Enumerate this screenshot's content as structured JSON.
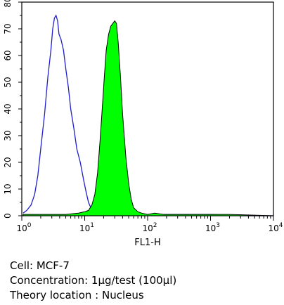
{
  "chart_data": {
    "type": "area",
    "xlabel": "FL1-H",
    "xscale": "log",
    "xlim": [
      1,
      10000
    ],
    "ylim": [
      0,
      80
    ],
    "ytick_labels": [
      "0",
      "10",
      "20",
      "30",
      "40",
      "50",
      "60",
      "70",
      "80"
    ],
    "xtick_labels": [
      {
        "base": "10",
        "exp": "0"
      },
      {
        "base": "10",
        "exp": "1"
      },
      {
        "base": "10",
        "exp": "2"
      },
      {
        "base": "10",
        "exp": "3"
      },
      {
        "base": "10",
        "exp": "4"
      }
    ],
    "series": [
      {
        "style": "outline",
        "color": "#1f1fcc",
        "x": [
          1.05,
          1.2,
          1.4,
          1.6,
          1.8,
          2.0,
          2.3,
          2.6,
          2.9,
          3.1,
          3.3,
          3.5,
          3.7,
          3.9,
          4.2,
          4.6,
          5.0,
          5.5,
          6.0,
          6.7,
          7.5,
          8.5,
          9.5,
          10.5,
          11.5,
          12.5,
          14,
          16,
          20,
          30,
          50,
          100,
          300,
          1000,
          3000,
          10000
        ],
        "y": [
          1,
          2,
          4,
          8,
          15,
          25,
          38,
          52,
          62,
          70,
          74,
          75,
          73,
          68,
          66,
          62,
          55,
          48,
          40,
          33,
          25,
          20,
          14,
          9,
          5,
          3,
          2,
          1,
          1,
          0.5,
          0.5,
          0.5,
          0.5,
          0.5,
          0,
          0
        ]
      },
      {
        "style": "filled",
        "color": "#00ff00",
        "x": [
          1.05,
          2,
          5,
          8,
          10,
          11.5,
          13,
          14.5,
          16,
          17.5,
          19,
          20.5,
          22,
          24,
          26,
          28,
          30,
          32,
          34,
          37,
          40,
          45,
          50,
          55,
          60,
          70,
          80,
          100,
          130,
          180,
          250,
          500,
          1000,
          2000,
          10000
        ],
        "y": [
          0.5,
          0.5,
          0.5,
          1,
          1.5,
          2,
          4,
          8,
          16,
          28,
          40,
          52,
          62,
          68,
          71,
          72,
          73,
          72,
          65,
          52,
          38,
          22,
          12,
          6,
          3,
          1.5,
          1,
          0.5,
          1,
          0.5,
          0.5,
          0.5,
          0.5,
          0.5,
          0
        ]
      }
    ]
  },
  "caption": {
    "cell": "Cell: MCF-7",
    "concentration": "Concentration: 1µg/test (100µl)",
    "theory": "Theory location : Nucleus"
  }
}
